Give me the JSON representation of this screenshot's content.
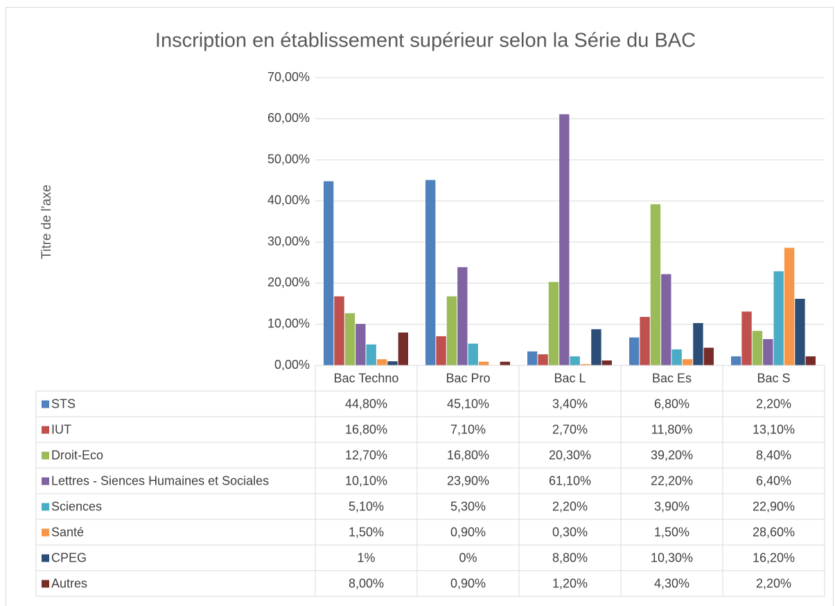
{
  "chart_data": {
    "type": "bar",
    "title": "Inscription en établissement supérieur selon la Série du BAC",
    "y_axis_label": "Titre de l'axe",
    "categories": [
      "Bac Techno",
      "Bac Pro",
      "Bac L",
      "Bac Es",
      "Bac S"
    ],
    "series": [
      {
        "name": "STS",
        "color": "#4f81bd",
        "values": [
          44.8,
          45.1,
          3.4,
          6.8,
          2.2
        ],
        "value_labels": [
          "44,80%",
          "45,10%",
          "3,40%",
          "6,80%",
          "2,20%"
        ]
      },
      {
        "name": "IUT",
        "color": "#c0504d",
        "values": [
          16.8,
          7.1,
          2.7,
          11.8,
          13.1
        ],
        "value_labels": [
          "16,80%",
          "7,10%",
          "2,70%",
          "11,80%",
          "13,10%"
        ]
      },
      {
        "name": "Droit-Eco",
        "color": "#9bbb59",
        "values": [
          12.7,
          16.8,
          20.3,
          39.2,
          8.4
        ],
        "value_labels": [
          "12,70%",
          "16,80%",
          "20,30%",
          "39,20%",
          "8,40%"
        ]
      },
      {
        "name": "Lettres - Siences Humaines et Sociales",
        "color": "#8064a2",
        "values": [
          10.1,
          23.9,
          61.1,
          22.2,
          6.4
        ],
        "value_labels": [
          "10,10%",
          "23,90%",
          "61,10%",
          "22,20%",
          "6,40%"
        ]
      },
      {
        "name": "Sciences",
        "color": "#4bacc6",
        "values": [
          5.1,
          5.3,
          2.2,
          3.9,
          22.9
        ],
        "value_labels": [
          "5,10%",
          "5,30%",
          "2,20%",
          "3,90%",
          "22,90%"
        ]
      },
      {
        "name": "Santé",
        "color": "#f79646",
        "values": [
          1.5,
          0.9,
          0.3,
          1.5,
          28.6
        ],
        "value_labels": [
          "1,50%",
          "0,90%",
          "0,30%",
          "1,50%",
          "28,60%"
        ]
      },
      {
        "name": "CPEG",
        "color": "#2c4d75",
        "values": [
          1,
          0,
          8.8,
          10.3,
          16.2
        ],
        "value_labels": [
          "1%",
          "0%",
          "8,80%",
          "10,30%",
          "16,20%"
        ]
      },
      {
        "name": "Autres",
        "color": "#772c2a",
        "values": [
          8.0,
          0.9,
          1.2,
          4.3,
          2.2
        ],
        "value_labels": [
          "8,00%",
          "0,90%",
          "1,20%",
          "4,30%",
          "2,20%"
        ]
      }
    ],
    "ylim": [
      0,
      70
    ],
    "yticks": [
      {
        "value": 0,
        "label": "0,00%"
      },
      {
        "value": 10,
        "label": "10,00%"
      },
      {
        "value": 20,
        "label": "20,00%"
      },
      {
        "value": 30,
        "label": "30,00%"
      },
      {
        "value": 40,
        "label": "40,00%"
      },
      {
        "value": 50,
        "label": "50,00%"
      },
      {
        "value": 60,
        "label": "60,00%"
      },
      {
        "value": 70,
        "label": "70,00%"
      }
    ],
    "grid": true
  }
}
